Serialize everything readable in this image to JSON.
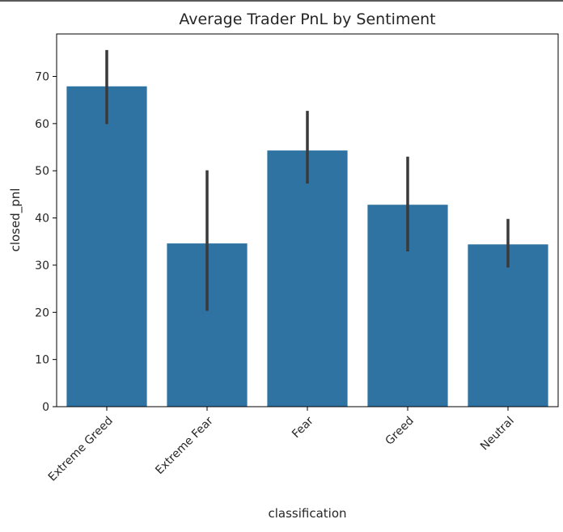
{
  "chart_data": {
    "type": "bar",
    "title": "Average Trader PnL by Sentiment",
    "xlabel": "classification",
    "ylabel": "closed_pnl",
    "categories": [
      "Extreme Greed",
      "Extreme Fear",
      "Fear",
      "Greed",
      "Neutral"
    ],
    "values": [
      67.9,
      34.6,
      54.3,
      42.8,
      34.4
    ],
    "error_low": [
      59.9,
      20.3,
      47.3,
      32.9,
      29.5
    ],
    "error_high": [
      75.6,
      50.1,
      62.7,
      53.0,
      39.8
    ],
    "yticks": [
      0,
      10,
      20,
      30,
      40,
      50,
      60,
      70
    ],
    "ylim": [
      0,
      79
    ],
    "grid": false,
    "colors": {
      "bar": "#2f73a3",
      "errorbar": "#3a3a3a",
      "axis": "#000000",
      "text": "#262626",
      "top_line": "#222222"
    }
  }
}
